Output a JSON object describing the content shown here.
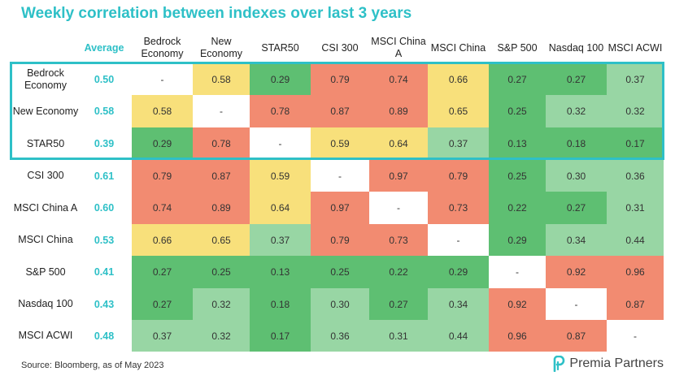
{
  "title": "Weekly correlation between indexes over last 3 years",
  "average_label": "Average",
  "source": "Source: Bloomberg, as of May 2023",
  "logo_text": "Premia Partners",
  "colors": {
    "accent": "#2ec0c7",
    "high": "#f28b71",
    "mid": "#f8e07b",
    "low_light": "#98d6a4",
    "low": "#5ebf72"
  },
  "chart_data": {
    "type": "heatmap",
    "title": "Weekly correlation between indexes over last 3 years",
    "columns": [
      "Bedrock Economy",
      "New Economy",
      "STAR50",
      "CSI 300",
      "MSCI China A",
      "MSCI China",
      "S&P 500",
      "Nasdaq 100",
      "MSCI ACWI"
    ],
    "rows": [
      "Bedrock Economy",
      "New Economy",
      "STAR50",
      "CSI 300",
      "MSCI China A",
      "MSCI China",
      "S&P 500",
      "Nasdaq 100",
      "MSCI ACWI"
    ],
    "averages": [
      "0.50",
      "0.58",
      "0.39",
      "0.61",
      "0.60",
      "0.53",
      "0.41",
      "0.43",
      "0.48"
    ],
    "diagonal_label": "-",
    "values": [
      [
        null,
        0.58,
        0.29,
        0.79,
        0.74,
        0.66,
        0.27,
        0.27,
        0.37
      ],
      [
        0.58,
        null,
        0.78,
        0.87,
        0.89,
        0.65,
        0.25,
        0.32,
        0.32
      ],
      [
        0.29,
        0.78,
        null,
        0.59,
        0.64,
        0.37,
        0.13,
        0.18,
        0.17
      ],
      [
        0.79,
        0.87,
        0.59,
        null,
        0.97,
        0.79,
        0.25,
        0.3,
        0.36
      ],
      [
        0.74,
        0.89,
        0.64,
        0.97,
        null,
        0.73,
        0.22,
        0.27,
        0.31
      ],
      [
        0.66,
        0.65,
        0.37,
        0.79,
        0.73,
        null,
        0.29,
        0.34,
        0.44
      ],
      [
        0.27,
        0.25,
        0.13,
        0.25,
        0.22,
        0.29,
        null,
        0.92,
        0.96
      ],
      [
        0.27,
        0.32,
        0.18,
        0.3,
        0.27,
        0.34,
        0.92,
        null,
        0.87
      ],
      [
        0.37,
        0.32,
        0.17,
        0.36,
        0.31,
        0.44,
        0.96,
        0.87,
        null
      ]
    ]
  }
}
